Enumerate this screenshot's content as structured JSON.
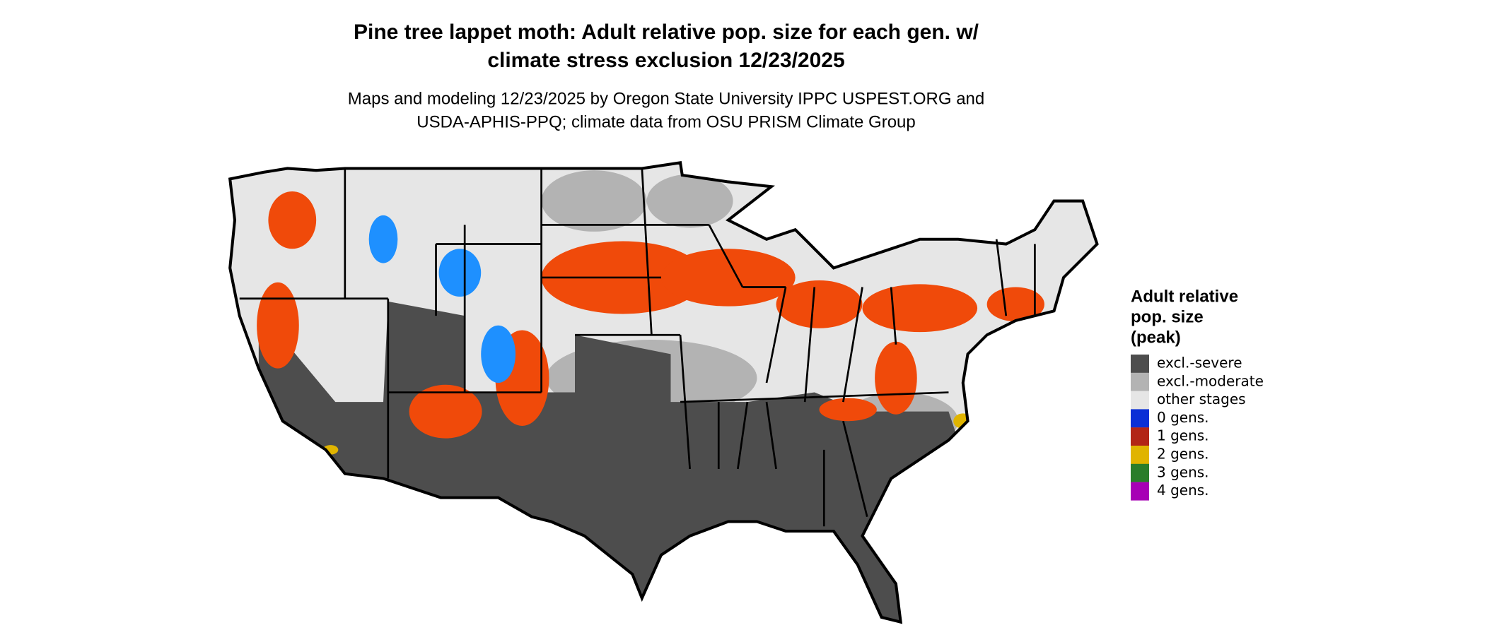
{
  "title": [
    "Pine tree lappet moth: Adult relative pop. size for each gen. w/",
    "climate stress exclusion 12/23/2025"
  ],
  "subtitle": [
    "Maps and modeling 12/23/2025 by Oregon State University IPPC USPEST.ORG and",
    "USDA-APHIS-PPQ; climate data from OSU PRISM Climate Group"
  ],
  "legend": {
    "title": [
      "Adult relative",
      "pop. size",
      "(peak)"
    ],
    "items": [
      {
        "label": "excl.-severe",
        "color": "#4d4d4d"
      },
      {
        "label": "excl.-moderate",
        "color": "#b3b3b3"
      },
      {
        "label": "other stages",
        "color": "#e6e6e6"
      },
      {
        "label": "0 gens.",
        "color": "#0a2fd6"
      },
      {
        "label": "1 gens.",
        "color": "#b22516"
      },
      {
        "label": "2 gens.",
        "color": "#e0b400"
      },
      {
        "label": "3 gens.",
        "color": "#2a7d2a"
      },
      {
        "label": "4 gens.",
        "color": "#a700b5"
      }
    ]
  }
}
